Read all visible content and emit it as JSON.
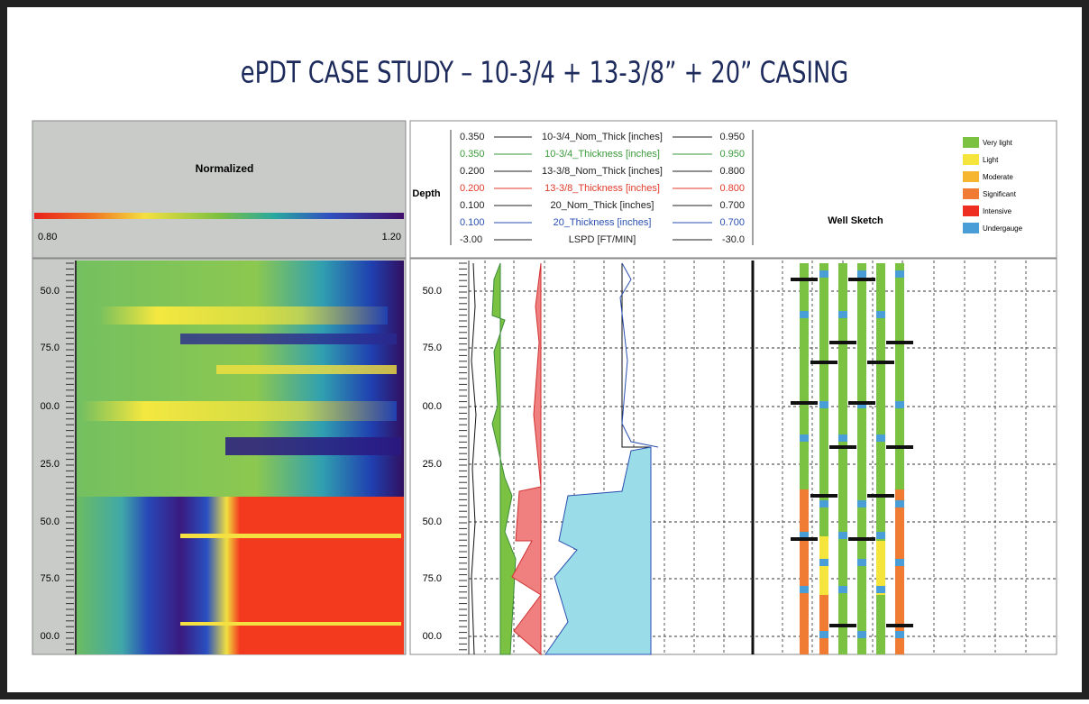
{
  "header": {
    "title": "ePDT CASE STUDY – 10-3/4 + 13-3/8” + 20” CASING"
  },
  "normalized_panel": {
    "title": "Normalized",
    "scale_min": "0.80",
    "scale_max": "1.20"
  },
  "depth_labels": [
    "50.0",
    "75.0",
    "00.0",
    "25.0",
    "50.0",
    "75.0",
    "00.0"
  ],
  "curve_header": {
    "depth_title": "Depth",
    "rows": [
      {
        "left": "0.350",
        "name": "10-3/4_Nom_Thick [inches]",
        "right": "0.950",
        "color": "#222222"
      },
      {
        "left": "0.350",
        "name": "10-3/4_Thickness [inches]",
        "right": "0.950",
        "color": "#3a9a3a"
      },
      {
        "left": "0.200",
        "name": "13-3/8_Nom_Thick [inches]",
        "right": "0.800",
        "color": "#222222"
      },
      {
        "left": "0.200",
        "name": "13-3/8_Thickness [inches]",
        "right": "0.800",
        "color": "#e03a2a"
      },
      {
        "left": "0.100",
        "name": "20_Nom_Thick [inches]",
        "right": "0.700",
        "color": "#222222"
      },
      {
        "left": "0.100",
        "name": "20_Thickness [inches]",
        "right": "0.700",
        "color": "#2a4fb0"
      },
      {
        "left": "-3.00",
        "name": "LSPD [FT/MIN]",
        "right": "-30.0",
        "color": "#222222"
      }
    ]
  },
  "well_sketch": {
    "title": "Well Sketch",
    "legend": [
      {
        "label": "Very light",
        "color": "#7cc242"
      },
      {
        "label": "Light",
        "color": "#f4e43c"
      },
      {
        "label": "Moderate",
        "color": "#f6b630"
      },
      {
        "label": "Significant",
        "color": "#f07c34"
      },
      {
        "label": "Intensive",
        "color": "#ee2e20"
      },
      {
        "label": "Undergauge",
        "color": "#4a9ed8"
      }
    ]
  }
}
